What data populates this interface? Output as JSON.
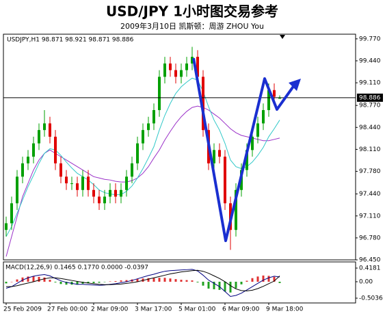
{
  "chart_data": [
    {
      "type": "candlestick",
      "title": "USD/JPY 1小时图交易参考",
      "subtitle": "2009年3月10日  凯斯顿：周游 ZHOU You",
      "info": "USDJPY,H1 98.871 98.921 98.871 98.886",
      "up_color": "#00a000",
      "down_color": "#e00000",
      "categories": [
        "25 Feb 2009",
        null,
        null,
        null,
        null,
        null,
        null,
        null,
        "27 Feb 00:00",
        null,
        null,
        null,
        null,
        null,
        null,
        null,
        "2 Mar 09:00",
        null,
        null,
        null,
        null,
        null,
        null,
        null,
        "3 Mar 17:00",
        null,
        null,
        null,
        null,
        null,
        null,
        null,
        "5 Mar 01:00",
        null,
        null,
        null,
        null,
        null,
        null,
        null,
        "6 Mar 09:00",
        null,
        null,
        null,
        null,
        null,
        null,
        null,
        "9 Mar 18:00",
        null,
        null
      ],
      "open": [
        96.9,
        97.0,
        97.3,
        97.7,
        97.9,
        98.0,
        98.2,
        98.4,
        98.5,
        98.3,
        97.9,
        97.7,
        97.6,
        97.6,
        97.5,
        97.7,
        97.5,
        97.4,
        97.3,
        97.4,
        97.5,
        97.4,
        97.5,
        97.7,
        97.9,
        98.2,
        98.4,
        98.5,
        98.7,
        99.2,
        99.4,
        99.3,
        99.2,
        99.3,
        99.4,
        99.5,
        99.2,
        98.4,
        97.9,
        98.1,
        98.0,
        97.3,
        96.9,
        97.5,
        97.8,
        98.1,
        98.3,
        98.5,
        98.7,
        99.0,
        98.871
      ],
      "high": [
        97.1,
        97.4,
        97.8,
        98.0,
        98.1,
        98.3,
        98.5,
        98.7,
        98.6,
        98.4,
        98.0,
        97.8,
        97.7,
        97.7,
        97.8,
        97.8,
        97.6,
        97.5,
        97.5,
        97.6,
        97.6,
        97.6,
        97.8,
        98.0,
        98.3,
        98.5,
        98.6,
        98.8,
        99.3,
        99.5,
        99.5,
        99.4,
        99.4,
        99.5,
        99.65,
        99.6,
        99.3,
        98.5,
        98.2,
        98.2,
        98.1,
        97.4,
        97.6,
        97.9,
        98.2,
        98.4,
        98.6,
        98.8,
        99.1,
        99.1,
        98.921
      ],
      "low": [
        96.8,
        96.9,
        97.2,
        97.6,
        97.8,
        97.9,
        98.1,
        98.3,
        98.2,
        97.8,
        97.6,
        97.5,
        97.5,
        97.4,
        97.4,
        97.4,
        97.3,
        97.2,
        97.2,
        97.3,
        97.3,
        97.3,
        97.4,
        97.6,
        97.8,
        98.1,
        98.3,
        98.4,
        98.6,
        99.1,
        99.2,
        99.1,
        99.1,
        99.2,
        99.3,
        99.1,
        98.3,
        97.8,
        97.8,
        97.9,
        97.2,
        96.6,
        96.8,
        97.4,
        97.7,
        98.0,
        98.2,
        98.4,
        98.6,
        98.8,
        98.871
      ],
      "close": [
        97.0,
        97.3,
        97.7,
        97.9,
        98.0,
        98.2,
        98.4,
        98.5,
        98.3,
        97.9,
        97.7,
        97.6,
        97.6,
        97.5,
        97.7,
        97.5,
        97.4,
        97.3,
        97.4,
        97.5,
        97.4,
        97.5,
        97.7,
        97.9,
        98.2,
        98.4,
        98.5,
        98.7,
        99.2,
        99.4,
        99.3,
        99.2,
        99.3,
        99.4,
        99.5,
        99.2,
        98.4,
        97.9,
        98.1,
        98.0,
        97.3,
        96.9,
        97.5,
        97.8,
        98.1,
        98.3,
        98.5,
        98.7,
        99.0,
        98.9,
        98.886
      ],
      "lines": [
        {
          "color": "#9a30c8",
          "values": [
            96.5,
            96.8,
            97.1,
            97.4,
            97.6,
            97.8,
            97.95,
            98.05,
            98.1,
            98.05,
            98.0,
            97.95,
            97.9,
            97.85,
            97.8,
            97.75,
            97.7,
            97.68,
            97.66,
            97.65,
            97.63,
            97.62,
            97.62,
            97.64,
            97.68,
            97.75,
            97.85,
            97.98,
            98.1,
            98.25,
            98.38,
            98.5,
            98.6,
            98.68,
            98.74,
            98.76,
            98.74,
            98.7,
            98.64,
            98.58,
            98.5,
            98.42,
            98.36,
            98.32,
            98.3,
            98.28,
            98.26,
            98.24,
            98.24,
            98.26,
            98.28
          ]
        },
        {
          "color": "#30c8c8",
          "values": [
            96.8,
            96.95,
            97.15,
            97.35,
            97.55,
            97.72,
            97.9,
            98.05,
            98.12,
            98.1,
            98.02,
            97.92,
            97.83,
            97.75,
            97.7,
            97.65,
            97.58,
            97.5,
            97.46,
            97.44,
            97.43,
            97.43,
            97.48,
            97.56,
            97.68,
            97.82,
            97.98,
            98.15,
            98.4,
            98.62,
            98.8,
            98.95,
            99.05,
            99.12,
            99.18,
            99.15,
            98.98,
            98.75,
            98.55,
            98.4,
            98.2,
            97.95,
            97.85,
            97.82,
            97.85,
            97.92,
            98.02,
            98.14,
            98.3,
            98.42,
            98.55
          ]
        }
      ],
      "current_price": 98.886,
      "ylim": [
        96.45,
        99.84
      ],
      "yticks": [
        {
          "value": 99.77,
          "label": "99.770"
        },
        {
          "value": 99.44,
          "label": "99.440"
        },
        {
          "value": 99.11,
          "label": "99.110"
        },
        {
          "value": 98.77,
          "label": "98.770"
        },
        {
          "value": 98.44,
          "label": "98.440"
        },
        {
          "value": 98.11,
          "label": "98.110"
        },
        {
          "value": 97.78,
          "label": "97.780"
        },
        {
          "value": 97.44,
          "label": "97.440"
        },
        {
          "value": 97.11,
          "label": "97.110"
        },
        {
          "value": 96.78,
          "label": "96.780"
        },
        {
          "value": 96.45,
          "label": "96.450"
        }
      ]
    },
    {
      "type": "macd",
      "label": "MACD(12,26,9) 0.1465 0.1770 0.0000 -0.0397",
      "up_color": "#e03030",
      "down_color": "#20a020",
      "histogram": [
        -0.05,
        0,
        0.07,
        0.13,
        0.16,
        0.17,
        0.15,
        0.13,
        0.06,
        -0.02,
        -0.07,
        -0.09,
        -0.09,
        -0.09,
        -0.06,
        -0.05,
        -0.04,
        -0.03,
        -0.01,
        0.01,
        0.02,
        0.04,
        0.05,
        0.07,
        0.09,
        0.1,
        0.11,
        0.11,
        0.12,
        0.12,
        0.1,
        0.08,
        0.06,
        0.05,
        0.04,
        -0.02,
        -0.12,
        -0.21,
        -0.23,
        -0.25,
        -0.3,
        -0.33,
        -0.2,
        -0.08,
        0.03,
        0.11,
        0.16,
        0.19,
        0.18,
        0.15,
        -0.0397
      ],
      "series": [
        {
          "color": "#000080",
          "values": [
            -0.2,
            -0.15,
            -0.05,
            0.05,
            0.12,
            0.17,
            0.2,
            0.22,
            0.18,
            0.1,
            0.03,
            -0.02,
            -0.05,
            -0.08,
            -0.08,
            -0.09,
            -0.1,
            -0.11,
            -0.1,
            -0.08,
            -0.06,
            -0.03,
            0.0,
            0.04,
            0.09,
            0.14,
            0.19,
            0.23,
            0.28,
            0.32,
            0.34,
            0.35,
            0.36,
            0.37,
            0.38,
            0.33,
            0.2,
            0.05,
            -0.05,
            -0.15,
            -0.3,
            -0.45,
            -0.42,
            -0.35,
            -0.25,
            -0.15,
            -0.05,
            0.05,
            0.12,
            0.17,
            0.1465
          ]
        },
        {
          "color": "#000000",
          "values": [
            -0.15,
            -0.15,
            -0.12,
            -0.08,
            -0.04,
            0.0,
            0.05,
            0.09,
            0.12,
            0.12,
            0.1,
            0.07,
            0.04,
            0.01,
            -0.02,
            -0.04,
            -0.06,
            -0.08,
            -0.09,
            -0.09,
            -0.08,
            -0.07,
            -0.05,
            -0.03,
            0.0,
            0.04,
            0.08,
            0.12,
            0.16,
            0.2,
            0.24,
            0.27,
            0.3,
            0.32,
            0.34,
            0.35,
            0.32,
            0.26,
            0.18,
            0.1,
            0.0,
            -0.12,
            -0.22,
            -0.27,
            -0.28,
            -0.26,
            -0.21,
            -0.14,
            -0.06,
            0.02,
            0.177
          ]
        }
      ],
      "ylim": [
        -0.65,
        0.607
      ],
      "yticks": [
        0.4181,
        {
          "value": 0,
          "label": "0.00"
        },
        -0.5036
      ]
    }
  ]
}
